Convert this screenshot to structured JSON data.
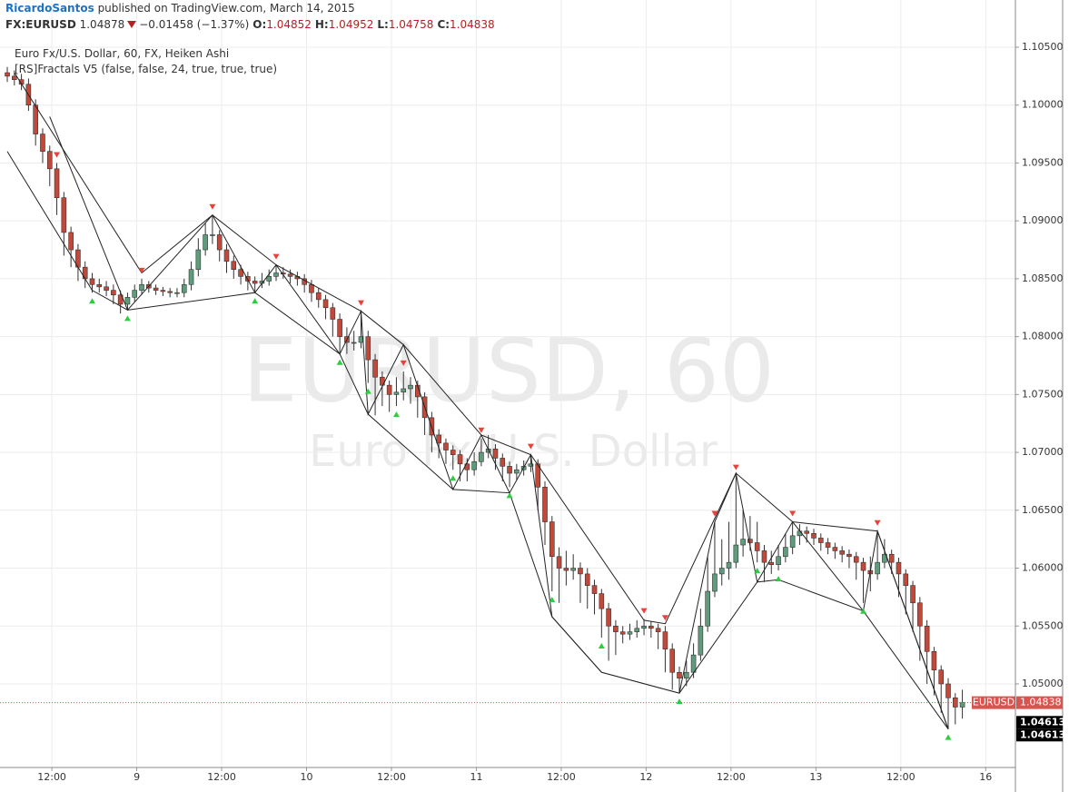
{
  "header": {
    "author": "RicardoSantos",
    "published": "published on TradingView.com, March 14, 2015",
    "symbol": "FX:EURUSD",
    "price": 1.04878,
    "change": "−0.01458 (−1.37%)",
    "ohlc_labels": [
      "O:",
      "H:",
      "L:",
      "C:"
    ],
    "ohlc": [
      1.04852,
      1.04952,
      1.04758,
      1.04838
    ]
  },
  "chart_data": {
    "type": "candlestick",
    "title": "Euro Fx/U.S. Dollar, 60, FX, Heiken Ashi",
    "indicator": "[RS]Fractals V5 (false, false, 24, true, true, true)",
    "watermark": [
      "EURUSD, 60",
      "Euro Fx/U.S. Dollar"
    ],
    "up_color": "#5e9c7b",
    "down_color": "#c2483a",
    "line_color": "#222222",
    "grid": true,
    "candles": [
      [
        1.1028,
        1.1033,
        1.102,
        1.1025
      ],
      [
        1.1025,
        1.103,
        1.1017,
        1.1022
      ],
      [
        1.1022,
        1.1027,
        1.1013,
        1.1018
      ],
      [
        1.1018,
        1.1023,
        1.0995,
        1.1
      ],
      [
        1.1,
        1.1005,
        1.0965,
        1.0975
      ],
      [
        1.0975,
        1.098,
        1.095,
        1.096
      ],
      [
        1.096,
        1.0965,
        1.093,
        1.0945
      ],
      [
        1.0945,
        1.095,
        1.0905,
        1.092
      ],
      [
        1.092,
        1.0925,
        1.087,
        1.089
      ],
      [
        1.089,
        1.0895,
        1.086,
        1.0875
      ],
      [
        1.0875,
        1.088,
        1.0848,
        1.086
      ],
      [
        1.086,
        1.0865,
        1.0842,
        1.085
      ],
      [
        1.085,
        1.0855,
        1.0838,
        1.0845
      ],
      [
        1.0845,
        1.085,
        1.0838,
        1.0843
      ],
      [
        1.0843,
        1.0848,
        1.0835,
        1.084
      ],
      [
        1.084,
        1.0845,
        1.0828,
        1.0836
      ],
      [
        1.0836,
        1.084,
        1.082,
        1.0828
      ],
      [
        1.0828,
        1.0838,
        1.0823,
        1.0834
      ],
      [
        1.0834,
        1.0845,
        1.083,
        1.084
      ],
      [
        1.084,
        1.085,
        1.0836,
        1.0845
      ],
      [
        1.0845,
        1.0848,
        1.0838,
        1.0842
      ],
      [
        1.0842,
        1.0845,
        1.0836,
        1.084
      ],
      [
        1.084,
        1.0843,
        1.0835,
        1.0839
      ],
      [
        1.0839,
        1.0842,
        1.0834,
        1.0838
      ],
      [
        1.0838,
        1.0842,
        1.0834,
        1.0838
      ],
      [
        1.0838,
        1.085,
        1.0834,
        1.0845
      ],
      [
        1.0845,
        1.0865,
        1.084,
        1.0858
      ],
      [
        1.0858,
        1.0885,
        1.0852,
        1.0875
      ],
      [
        1.0875,
        1.0898,
        1.087,
        1.0888
      ],
      [
        1.0888,
        1.0905,
        1.088,
        1.0888
      ],
      [
        1.0888,
        1.0892,
        1.0865,
        1.0875
      ],
      [
        1.0875,
        1.088,
        1.0855,
        1.0865
      ],
      [
        1.0865,
        1.087,
        1.085,
        1.0858
      ],
      [
        1.0858,
        1.0862,
        1.0845,
        1.0852
      ],
      [
        1.0852,
        1.0856,
        1.084,
        1.0848
      ],
      [
        1.0848,
        1.0852,
        1.0838,
        1.0846
      ],
      [
        1.0846,
        1.0855,
        1.0842,
        1.0848
      ],
      [
        1.0848,
        1.0858,
        1.0844,
        1.0852
      ],
      [
        1.0852,
        1.0862,
        1.0848,
        1.0855
      ],
      [
        1.0855,
        1.086,
        1.085,
        1.0854
      ],
      [
        1.0854,
        1.0858,
        1.0846,
        1.0852
      ],
      [
        1.0852,
        1.0856,
        1.0844,
        1.085
      ],
      [
        1.085,
        1.0854,
        1.0838,
        1.0845
      ],
      [
        1.0845,
        1.0849,
        1.083,
        1.0838
      ],
      [
        1.0838,
        1.0842,
        1.0825,
        1.0832
      ],
      [
        1.0832,
        1.0836,
        1.0815,
        1.0825
      ],
      [
        1.0825,
        1.0829,
        1.08,
        1.0815
      ],
      [
        1.0815,
        1.082,
        1.0785,
        1.08
      ],
      [
        1.08,
        1.0808,
        1.0785,
        1.0795
      ],
      [
        1.0795,
        1.0805,
        1.0788,
        1.0795
      ],
      [
        1.0795,
        1.0822,
        1.079,
        1.08
      ],
      [
        1.08,
        1.0805,
        1.076,
        1.078
      ],
      [
        1.078,
        1.0785,
        1.0732,
        1.0765
      ],
      [
        1.0765,
        1.077,
        1.074,
        1.0758
      ],
      [
        1.0758,
        1.0762,
        1.0735,
        1.075
      ],
      [
        1.075,
        1.0765,
        1.074,
        1.0752
      ],
      [
        1.0752,
        1.077,
        1.0745,
        1.0755
      ],
      [
        1.0755,
        1.0765,
        1.0742,
        1.0758
      ],
      [
        1.0758,
        1.0762,
        1.073,
        1.0748
      ],
      [
        1.0748,
        1.0752,
        1.0715,
        1.073
      ],
      [
        1.073,
        1.0735,
        1.07,
        1.0715
      ],
      [
        1.0715,
        1.072,
        1.0695,
        1.0708
      ],
      [
        1.0708,
        1.0712,
        1.069,
        1.0702
      ],
      [
        1.0702,
        1.0706,
        1.0685,
        1.0698
      ],
      [
        1.0698,
        1.0702,
        1.0675,
        1.069
      ],
      [
        1.069,
        1.0695,
        1.0675,
        1.0685
      ],
      [
        1.0685,
        1.07,
        1.068,
        1.0692
      ],
      [
        1.0692,
        1.0712,
        1.0688,
        1.07
      ],
      [
        1.07,
        1.0715,
        1.0695,
        1.0703
      ],
      [
        1.0703,
        1.0707,
        1.0685,
        1.0695
      ],
      [
        1.0695,
        1.0699,
        1.0675,
        1.0688
      ],
      [
        1.0688,
        1.0692,
        1.067,
        1.0682
      ],
      [
        1.0682,
        1.069,
        1.0676,
        1.0685
      ],
      [
        1.0685,
        1.0693,
        1.068,
        1.0688
      ],
      [
        1.0688,
        1.0698,
        1.0683,
        1.069
      ],
      [
        1.069,
        1.0694,
        1.065,
        1.067
      ],
      [
        1.067,
        1.0675,
        1.062,
        1.064
      ],
      [
        1.064,
        1.0645,
        1.058,
        1.061
      ],
      [
        1.061,
        1.0618,
        1.057,
        1.06
      ],
      [
        1.06,
        1.0615,
        1.0585,
        1.0598
      ],
      [
        1.0598,
        1.0612,
        1.059,
        1.06
      ],
      [
        1.06,
        1.0605,
        1.057,
        1.0595
      ],
      [
        1.0595,
        1.06,
        1.0565,
        1.0585
      ],
      [
        1.0585,
        1.059,
        1.056,
        1.0578
      ],
      [
        1.0578,
        1.0582,
        1.054,
        1.0565
      ],
      [
        1.0565,
        1.057,
        1.052,
        1.055
      ],
      [
        1.055,
        1.0555,
        1.0525,
        1.0545
      ],
      [
        1.0545,
        1.055,
        1.0535,
        1.0543
      ],
      [
        1.0543,
        1.0552,
        1.0538,
        1.0545
      ],
      [
        1.0545,
        1.0555,
        1.054,
        1.0548
      ],
      [
        1.0548,
        1.0556,
        1.0542,
        1.055
      ],
      [
        1.055,
        1.0554,
        1.054,
        1.0548
      ],
      [
        1.0548,
        1.0552,
        1.053,
        1.0545
      ],
      [
        1.0545,
        1.055,
        1.051,
        1.053
      ],
      [
        1.053,
        1.0535,
        1.0495,
        1.051
      ],
      [
        1.051,
        1.0515,
        1.0492,
        1.0505
      ],
      [
        1.0505,
        1.052,
        1.0498,
        1.051
      ],
      [
        1.051,
        1.0535,
        1.0505,
        1.0525
      ],
      [
        1.0525,
        1.0565,
        1.052,
        1.055
      ],
      [
        1.055,
        1.061,
        1.0545,
        1.058
      ],
      [
        1.058,
        1.064,
        1.0575,
        1.0595
      ],
      [
        1.0595,
        1.0625,
        1.0585,
        1.06
      ],
      [
        1.06,
        1.064,
        1.059,
        1.0605
      ],
      [
        1.0605,
        1.068,
        1.06,
        1.062
      ],
      [
        1.062,
        1.065,
        1.061,
        1.0625
      ],
      [
        1.0625,
        1.0645,
        1.0615,
        1.0622
      ],
      [
        1.0622,
        1.064,
        1.0605,
        1.0615
      ],
      [
        1.0615,
        1.062,
        1.0588,
        1.0605
      ],
      [
        1.0605,
        1.0615,
        1.0595,
        1.0603
      ],
      [
        1.0603,
        1.062,
        1.0598,
        1.061
      ],
      [
        1.061,
        1.063,
        1.0605,
        1.0618
      ],
      [
        1.0618,
        1.064,
        1.0612,
        1.0628
      ],
      [
        1.0628,
        1.0638,
        1.062,
        1.0632
      ],
      [
        1.0632,
        1.0636,
        1.0622,
        1.063
      ],
      [
        1.063,
        1.0634,
        1.062,
        1.0626
      ],
      [
        1.0626,
        1.063,
        1.0615,
        1.0622
      ],
      [
        1.0622,
        1.0626,
        1.0612,
        1.0618
      ],
      [
        1.0618,
        1.0622,
        1.0608,
        1.0615
      ],
      [
        1.0615,
        1.0619,
        1.0605,
        1.0612
      ],
      [
        1.0612,
        1.0616,
        1.06,
        1.061
      ],
      [
        1.061,
        1.0614,
        1.059,
        1.0605
      ],
      [
        1.0605,
        1.0609,
        1.057,
        1.0598
      ],
      [
        1.0598,
        1.061,
        1.058,
        1.0595
      ],
      [
        1.0595,
        1.0632,
        1.059,
        1.0605
      ],
      [
        1.0605,
        1.0625,
        1.06,
        1.0612
      ],
      [
        1.0612,
        1.0616,
        1.0595,
        1.0605
      ],
      [
        1.0605,
        1.0609,
        1.0575,
        1.0595
      ],
      [
        1.0595,
        1.0599,
        1.056,
        1.0585
      ],
      [
        1.0585,
        1.0589,
        1.0545,
        1.057
      ],
      [
        1.057,
        1.0575,
        1.052,
        1.055
      ],
      [
        1.055,
        1.0555,
        1.05,
        1.0528
      ],
      [
        1.0528,
        1.0532,
        1.049,
        1.0512
      ],
      [
        1.0512,
        1.0516,
        1.0475,
        1.05
      ],
      [
        1.05,
        1.0505,
        1.0461,
        1.0488
      ],
      [
        1.0488,
        1.0492,
        1.0465,
        1.048
      ],
      [
        1.048,
        1.0495,
        1.047,
        1.04838
      ]
    ],
    "zigzag": [
      [
        [
          6,
          1.099
        ],
        [
          17,
          1.0823
        ],
        [
          29,
          1.0905
        ],
        [
          35,
          1.0838
        ],
        [
          38,
          1.0862
        ],
        [
          47,
          1.0785
        ],
        [
          50,
          1.0822
        ],
        [
          51,
          1.0733
        ],
        [
          56,
          1.0793
        ],
        [
          63,
          1.0668
        ],
        [
          67,
          1.0715
        ],
        [
          71,
          1.0665
        ],
        [
          74,
          1.0698
        ],
        [
          77,
          1.0558
        ],
        [
          84,
          1.051
        ],
        [
          95,
          1.0492
        ],
        [
          100,
          1.064
        ],
        [
          103,
          1.0682
        ],
        [
          106,
          1.0588
        ],
        [
          111,
          1.064
        ],
        [
          121,
          1.0563
        ],
        [
          123,
          1.0632
        ],
        [
          133,
          1.0461
        ]
      ],
      [
        [
          1,
          1.1028
        ],
        [
          19,
          1.0855
        ],
        [
          29,
          1.0905
        ],
        [
          38,
          1.0862
        ],
        [
          50,
          1.0822
        ],
        [
          56,
          1.0793
        ],
        [
          67,
          1.0715
        ],
        [
          74,
          1.0698
        ],
        [
          90,
          1.0555
        ],
        [
          93,
          1.0552
        ],
        [
          103,
          1.0682
        ],
        [
          111,
          1.064
        ],
        [
          123,
          1.0632
        ],
        [
          133,
          1.0461
        ]
      ],
      [
        [
          0,
          1.096
        ],
        [
          12,
          1.084
        ],
        [
          17,
          1.0823
        ],
        [
          35,
          1.0838
        ],
        [
          47,
          1.0785
        ],
        [
          51,
          1.0733
        ],
        [
          63,
          1.0668
        ],
        [
          71,
          1.0665
        ],
        [
          77,
          1.0558
        ],
        [
          84,
          1.051
        ],
        [
          95,
          1.0492
        ],
        [
          106,
          1.0588
        ],
        [
          109,
          1.059
        ],
        [
          121,
          1.0563
        ],
        [
          133,
          1.0461
        ]
      ]
    ],
    "fractals_high": [
      7,
      19,
      29,
      38,
      50,
      56,
      67,
      74,
      90,
      93,
      100,
      103,
      111,
      123
    ],
    "fractals_low": [
      12,
      17,
      35,
      47,
      51,
      55,
      63,
      71,
      77,
      84,
      95,
      106,
      109,
      121,
      133
    ],
    "xlim": [
      -1.03,
      142.5
    ],
    "ylim": [
      1.04278,
      1.10908
    ],
    "xticks": [
      {
        "value": 6.3,
        "label": "12:00"
      },
      {
        "value": 18.3,
        "label": "9"
      },
      {
        "value": 30.3,
        "label": "12:00"
      },
      {
        "value": 42.3,
        "label": "10"
      },
      {
        "value": 54.3,
        "label": "12:00"
      },
      {
        "value": 66.3,
        "label": "11"
      },
      {
        "value": 78.3,
        "label": "12:00"
      },
      {
        "value": 90.3,
        "label": "12"
      },
      {
        "value": 102.3,
        "label": "12:00"
      },
      {
        "value": 114.3,
        "label": "13"
      },
      {
        "value": 126.3,
        "label": "12:00"
      },
      {
        "value": 138.3,
        "label": "16"
      }
    ],
    "yticks": [
      {
        "value": 1.05,
        "label": "1.05000"
      },
      {
        "value": 1.055,
        "label": "1.05500"
      },
      {
        "value": 1.06,
        "label": "1.06000"
      },
      {
        "value": 1.065,
        "label": "1.06500"
      },
      {
        "value": 1.07,
        "label": "1.07000"
      },
      {
        "value": 1.075,
        "label": "1.07500"
      },
      {
        "value": 1.08,
        "label": "1.08000"
      },
      {
        "value": 1.085,
        "label": "1.08500"
      },
      {
        "value": 1.09,
        "label": "1.09000"
      },
      {
        "value": 1.095,
        "label": "1.09500"
      },
      {
        "value": 1.1,
        "label": "1.10000"
      },
      {
        "value": 1.105,
        "label": "1.10500"
      }
    ],
    "last_price": {
      "name": "EURUSD",
      "value": 1.04838,
      "color": "#d9534f"
    },
    "price_marks": [
      1.04613,
      1.04613
    ]
  }
}
